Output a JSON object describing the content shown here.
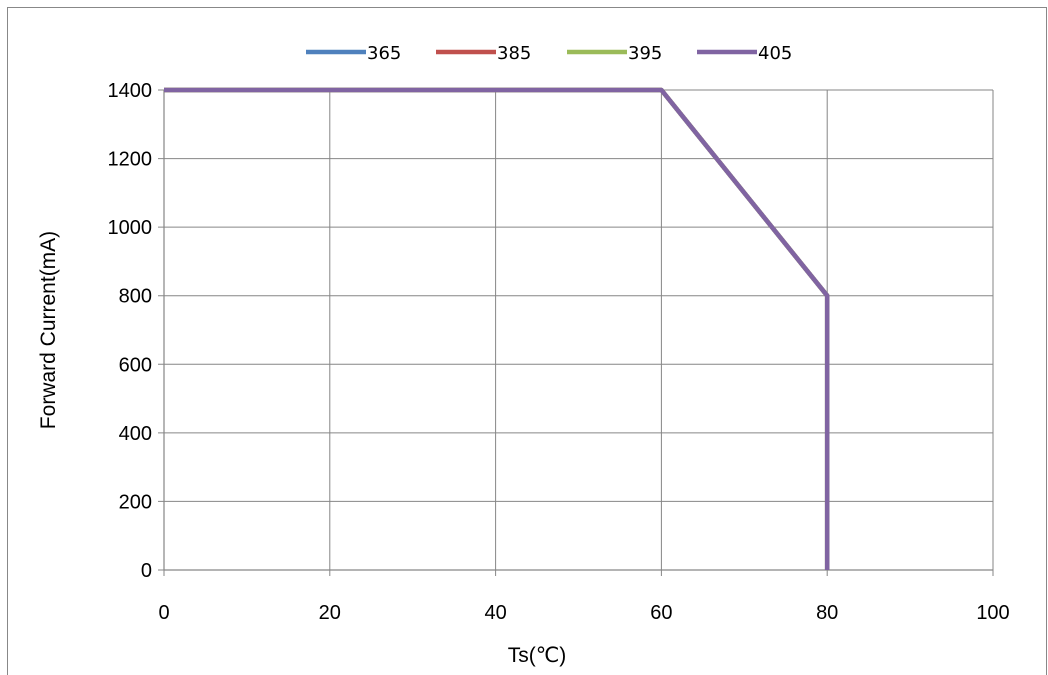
{
  "chart_data": {
    "type": "line",
    "title": "",
    "xlabel": "Ts(℃)",
    "ylabel": "Forward Current(mA)",
    "xlim": [
      0,
      100
    ],
    "ylim": [
      0,
      1400
    ],
    "xticks": [
      "0",
      "20",
      "40",
      "60",
      "80",
      "100"
    ],
    "yticks": [
      "0",
      "200",
      "400",
      "600",
      "800",
      "1000",
      "1200",
      "1400"
    ],
    "grid": true,
    "legend_position": "top-center",
    "series": [
      {
        "name": "365",
        "color": "#4f81bd",
        "x": [
          0,
          60,
          80,
          80
        ],
        "y": [
          1400,
          1400,
          800,
          0
        ]
      },
      {
        "name": "385",
        "color": "#c0504d",
        "x": [
          0,
          60,
          80,
          80
        ],
        "y": [
          1400,
          1400,
          800,
          0
        ]
      },
      {
        "name": "395",
        "color": "#9bbb59",
        "x": [
          0,
          60,
          80,
          80
        ],
        "y": [
          1400,
          1400,
          800,
          0
        ]
      },
      {
        "name": "405",
        "color": "#8064a2",
        "x": [
          0,
          60,
          80,
          80
        ],
        "y": [
          1400,
          1400,
          800,
          0
        ]
      }
    ]
  }
}
